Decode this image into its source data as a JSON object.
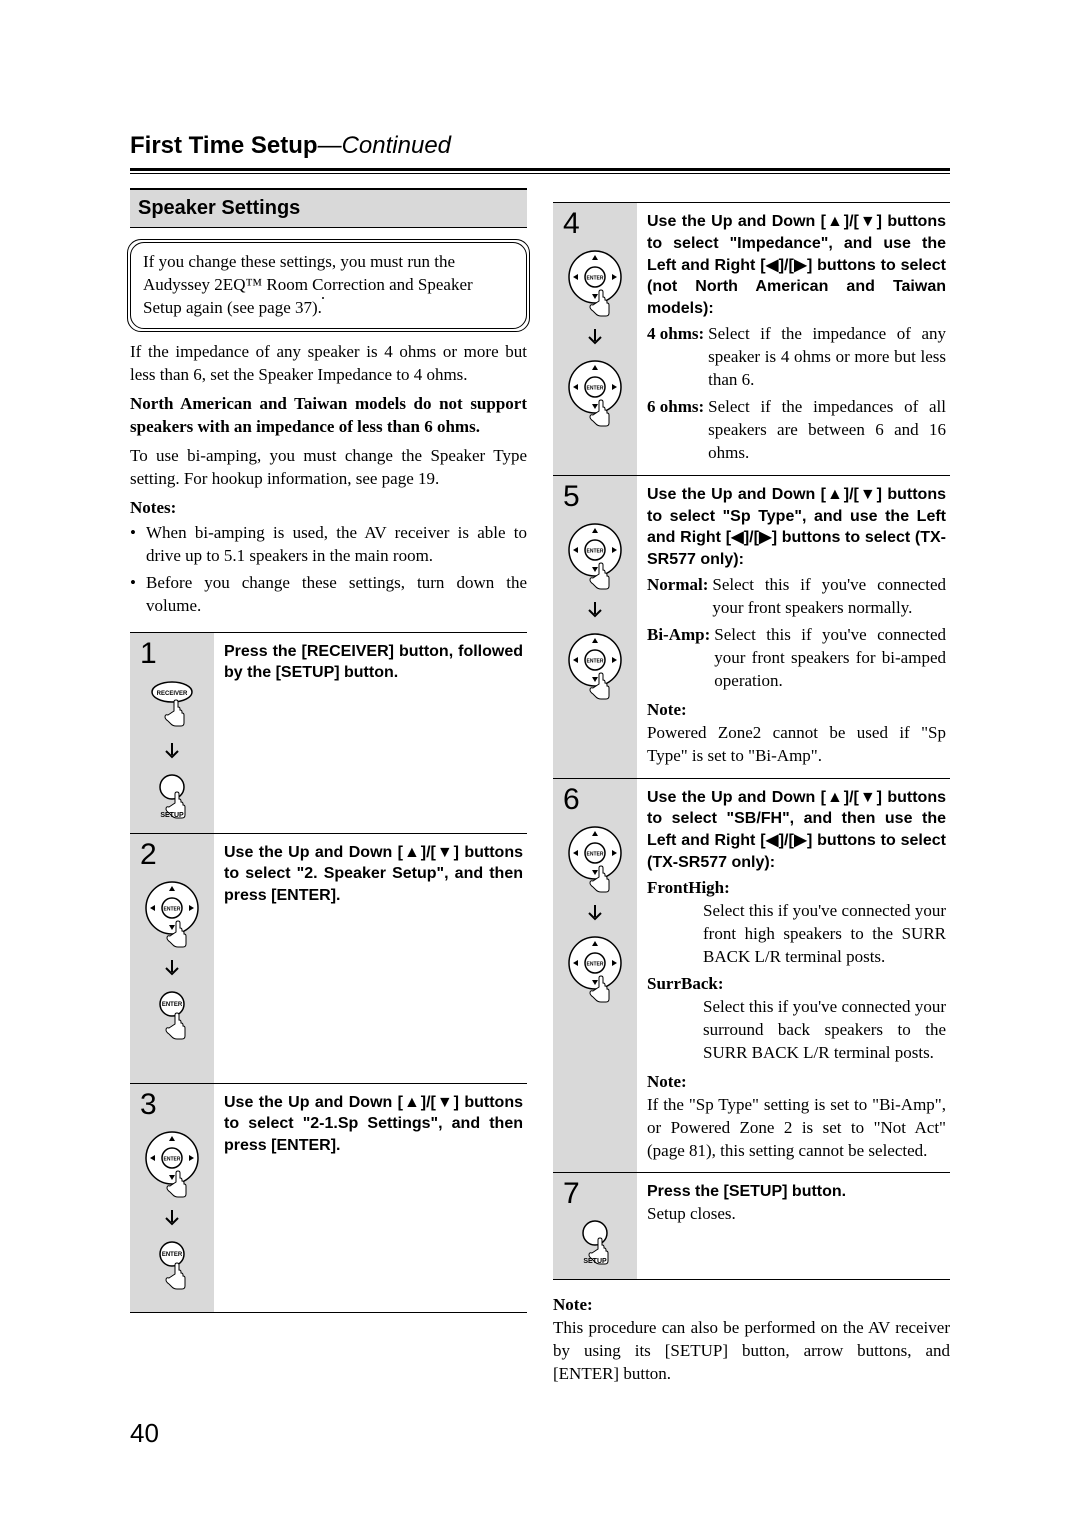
{
  "header": {
    "title": "First Time Setup",
    "continued": "—Continued"
  },
  "section_title": "Speaker Settings",
  "callout": "If you change these settings, you must run the Audyssey 2EQ™ Room Correction and Speaker Setup again (see page 37).",
  "intro": {
    "p1": "If the impedance of any speaker is 4 ohms or more but less than 6, set the Speaker Impedance to 4 ohms.",
    "p2_bold": "North American and Taiwan models do not support speakers with an impedance of less than 6 ohms.",
    "p3": "To use bi-amping, you must change the Speaker Type setting. For hookup information, see page 19.",
    "notes_label": "Notes:",
    "bullets": [
      "When bi-amping is used, the AV receiver is able to drive up to 5.1 speakers in the main room.",
      "Before you change these settings, turn down the volume."
    ]
  },
  "steps_left": [
    {
      "num": "1",
      "lead": "Press the [RECEIVER] button, followed by the [SETUP] button.",
      "icons": [
        "receiver-press",
        "arrow",
        "setup-press"
      ]
    },
    {
      "num": "2",
      "lead": "Use the Up and Down [▲]/[▼] buttons to select \"2. Speaker Setup\", and then press [ENTER].",
      "icons": [
        "dpad-press",
        "arrow",
        "enter-press"
      ]
    },
    {
      "num": "3",
      "lead": "Use the Up and Down [▲]/[▼] buttons to select \"2-1.Sp Settings\", and then press [ENTER].",
      "icons": [
        "dpad-press",
        "arrow",
        "enter-press"
      ]
    }
  ],
  "steps_right": [
    {
      "num": "4",
      "lead": "Use the Up and Down [▲]/[▼] buttons to select \"Impedance\", and use the Left and Right [◀]/[▶] buttons to select (not North American and Taiwan models):",
      "defs": [
        {
          "term": "4 ohms:",
          "def": "Select if the impedance of any speaker is 4 ohms or more but less than 6."
        },
        {
          "term": "6 ohms:",
          "def": "Select if the impedances of all speakers are between 6 and 16 ohms."
        }
      ],
      "icons": [
        "dpad-press",
        "arrow",
        "dpad-press"
      ]
    },
    {
      "num": "5",
      "lead": "Use the Up and Down [▲]/[▼] buttons to select \"Sp Type\", and use the Left and Right [◀]/[▶] buttons to select (TX-SR577 only):",
      "defs": [
        {
          "term": "Normal:",
          "def": "Select this if you've connected your front speakers normally."
        },
        {
          "term": "Bi-Amp:",
          "def": "Select this if you've connected your front speakers for bi-amped operation."
        }
      ],
      "note_label": "Note:",
      "note": "Powered Zone2 cannot be used if \"Sp Type\" is set to \"Bi-Amp\".",
      "icons": [
        "dpad-press",
        "arrow",
        "dpad-press"
      ]
    },
    {
      "num": "6",
      "lead": "Use the Up and Down [▲]/[▼] buttons to select \"SB/FH\", and then use the Left and Right [◀]/[▶] buttons to select (TX-SR577 only):",
      "subdefs": [
        {
          "term": "FrontHigh:",
          "def": "Select this if you've connected your front high speakers to the SURR BACK L/R terminal posts."
        },
        {
          "term": "SurrBack:",
          "def": "Select this if you've connected your surround back speakers to the SURR BACK L/R terminal posts."
        }
      ],
      "note_label": "Note:",
      "note": "If the \"Sp Type\" setting is set to \"Bi-Amp\", or Powered Zone 2 is set to \"Not Act\" (page 81), this setting cannot be selected.",
      "icons": [
        "dpad-press",
        "arrow",
        "dpad-press"
      ]
    },
    {
      "num": "7",
      "lead": "Press the [SETUP] button.",
      "after": "Setup closes.",
      "icons": [
        "setup-press"
      ]
    }
  ],
  "footer": {
    "note_label": "Note:",
    "note": "This procedure can also be performed on the AV receiver by using its [SETUP] button, arrow buttons, and [ENTER] button."
  },
  "page_number": "40",
  "icon_labels": {
    "receiver": "RECEIVER",
    "setup": "SETUP",
    "enter": "ENTER"
  }
}
